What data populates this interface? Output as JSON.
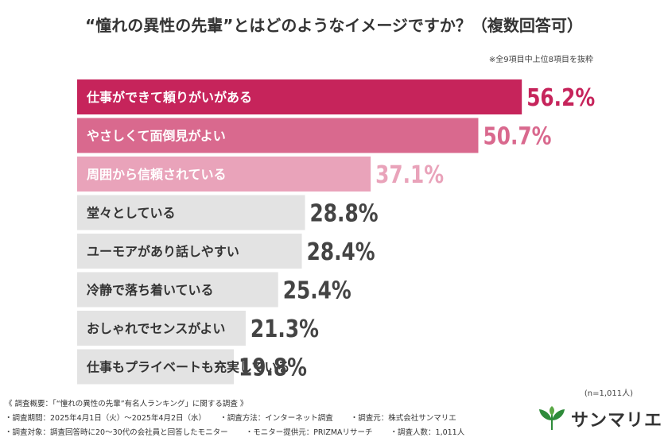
{
  "title": "“憧れの異性の先輩”とはどのようなイメージですか？（複数回答可）",
  "note": "※全9項目中上位8項目を抜粋",
  "sample_note": "(n=1,011人)",
  "chart_data": {
    "type": "bar",
    "orientation": "horizontal",
    "categories": [
      "仕事ができて頼りがいがある",
      "やさしくて面倒見がよい",
      "周囲から信頼されている",
      "堂々としている",
      "ユーモアがあり話しやすい",
      "冷静で落ち着いている",
      "おしゃれでセンスがよい",
      "仕事もプライベートも充実している"
    ],
    "values": [
      56.2,
      50.7,
      37.1,
      28.8,
      28.4,
      25.4,
      21.3,
      19.8
    ],
    "value_labels": [
      "56.2%",
      "50.7%",
      "37.1%",
      "28.8%",
      "28.4%",
      "25.4%",
      "21.3%",
      "19.8%"
    ],
    "xlim": [
      0,
      100
    ],
    "bar_colors": [
      "#c6245b",
      "#d9698e",
      "#e9a3ba",
      "#e3e3e3",
      "#e3e3e3",
      "#e3e3e3",
      "#e3e3e3",
      "#e3e3e3"
    ],
    "value_colors": [
      "#c6245b",
      "#d9698e",
      "#e9a3ba",
      "#444444",
      "#444444",
      "#444444",
      "#444444",
      "#444444"
    ],
    "label_colors": [
      "#ffffff",
      "#ffffff",
      "#ffffff",
      "#333333",
      "#333333",
      "#333333",
      "#333333",
      "#333333"
    ]
  },
  "footer": {
    "heading": "《 調査概要：「“憧れの異性の先輩”有名人ランキング」に関する調査 》",
    "period": "・調査期間：2025年4月1日（火）～2025年4月2日（水）",
    "method": "・調査方法：インターネット調査",
    "source": "・調査元：株式会社サンマリエ",
    "target": "・調査対象：調査回答時に20～30代の会社員と回答したモニター",
    "provider": "・モニター提供元：PRIZMAリサーチ",
    "count": "・調査人数：1,011人"
  },
  "logo": {
    "text": "サンマリエ",
    "icon": "leaf-icon",
    "color": "#2e8b3a"
  }
}
